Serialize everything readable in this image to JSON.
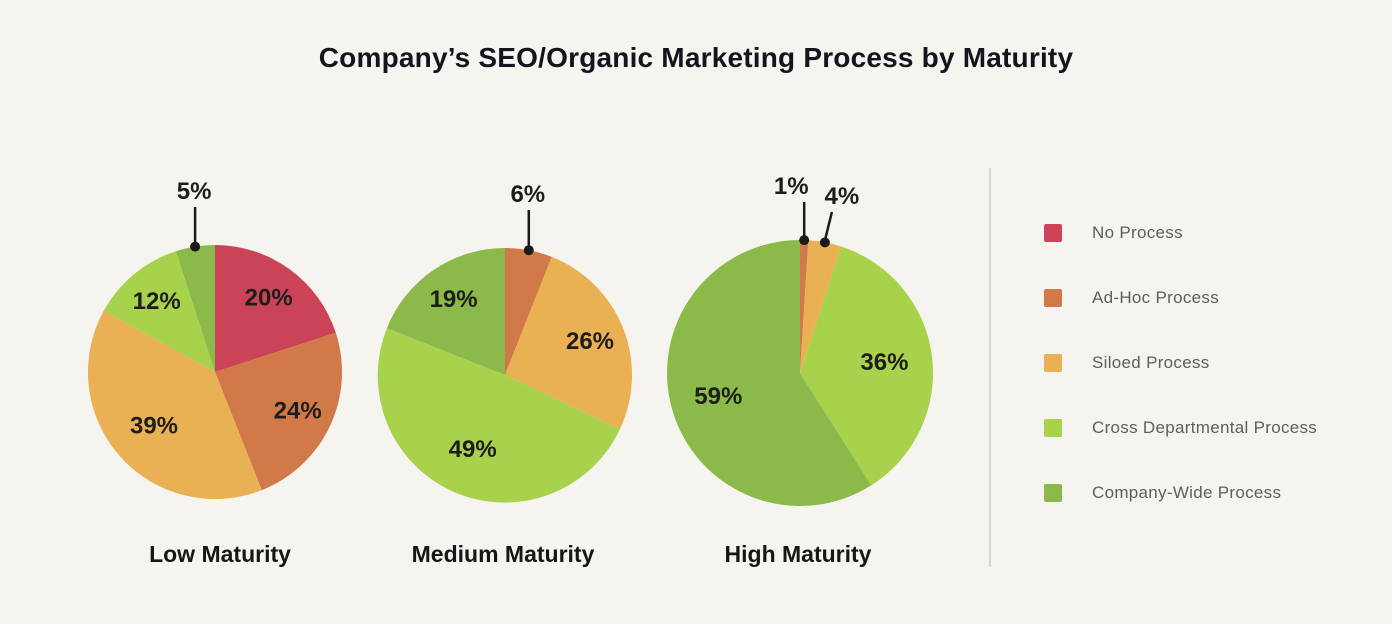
{
  "page": {
    "background": "#f5f4ef",
    "title": "Company’s SEO/Organic Marketing Process by Maturity"
  },
  "legend": {
    "position": "right",
    "items": [
      {
        "label": "No Process",
        "color": "#cb4357"
      },
      {
        "label": "Ad-Hoc Process",
        "color": "#d2794a"
      },
      {
        "label": "Siloed Process",
        "color": "#e9b054"
      },
      {
        "label": "Cross Departmental Process",
        "color": "#a9d24c"
      },
      {
        "label": "Company-Wide Process",
        "color": "#8bba4a"
      }
    ]
  },
  "chart_data": {
    "type": "pie",
    "title": "Company’s SEO/Organic Marketing Process by Maturity",
    "categories": [
      "No Process",
      "Ad-Hoc Process",
      "Siloed Process",
      "Cross Departmental Process",
      "Company-Wide Process"
    ],
    "colors": [
      "#cb4357",
      "#d2794a",
      "#e9b054",
      "#a9d24c",
      "#8bba4a"
    ],
    "unit": "percent",
    "start_angle": "12 o'clock, clockwise",
    "legend_position": "right",
    "series": [
      {
        "name": "Low Maturity",
        "values": [
          20,
          24,
          39,
          12,
          5
        ]
      },
      {
        "name": "Medium Maturity",
        "values": [
          0,
          6,
          26,
          49,
          19
        ]
      },
      {
        "name": "High Maturity",
        "values": [
          0,
          1,
          4,
          36,
          59
        ]
      }
    ],
    "callout_labels": [
      "5%",
      "6%",
      "1%",
      "4%"
    ]
  }
}
